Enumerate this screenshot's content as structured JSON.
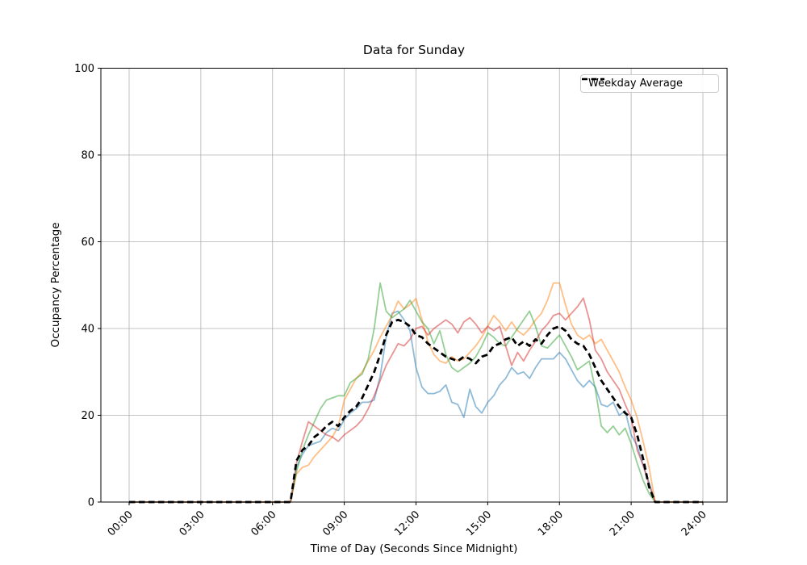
{
  "figure": {
    "title": "Data for Sunday",
    "xlabel": "Time of Day (Seconds Since Midnight)",
    "ylabel": "Occupancy Percentage",
    "legend_label": "Weekday Average"
  },
  "chart_data": {
    "type": "line",
    "title": "Data for Sunday",
    "xlabel": "Time of Day (Seconds Since Midnight)",
    "ylabel": "Occupancy Percentage",
    "x_unit": "hours_of_day",
    "x_start": 0,
    "x_step": 0.25,
    "xtick_hours": [
      0,
      3,
      6,
      9,
      12,
      15,
      18,
      21,
      24
    ],
    "xtick_labels": [
      "00:00",
      "03:00",
      "06:00",
      "09:00",
      "12:00",
      "15:00",
      "18:00",
      "21:00",
      "24:00"
    ],
    "ytick_values": [
      0,
      20,
      40,
      60,
      80,
      100
    ],
    "ylim": [
      0,
      100
    ],
    "grid": true,
    "legend": {
      "position": "upper right",
      "entries": [
        "Weekday Average"
      ]
    },
    "colors": {
      "grid": "#b0b0b0",
      "spine": "#000000",
      "background": "#ffffff"
    },
    "series": [
      {
        "name": "series-blue",
        "color": "#1f77b4",
        "opacity": 0.5,
        "width": 1.8,
        "dashed": false,
        "values": [
          0,
          0,
          0,
          0,
          0,
          0,
          0,
          0,
          0,
          0,
          0,
          0,
          0,
          0,
          0,
          0,
          0,
          0,
          0,
          0,
          0,
          0,
          0,
          0,
          0,
          0,
          0,
          0,
          8,
          11,
          13,
          13.5,
          14,
          16,
          17,
          16.5,
          19,
          20.5,
          21.5,
          23,
          23,
          23.5,
          29,
          38,
          43.5,
          44,
          42,
          39.5,
          31,
          26.5,
          25,
          25,
          25.5,
          27,
          23,
          22.5,
          19.5,
          26,
          22,
          20.5,
          23,
          24.5,
          27,
          28.5,
          31,
          29.5,
          30,
          28.5,
          31,
          33,
          33,
          33,
          34.5,
          33,
          30.5,
          28,
          26.5,
          28,
          26.5,
          22.5,
          22,
          23,
          20,
          21,
          15.5,
          13,
          8.5,
          4.5,
          0,
          0,
          0,
          0,
          0,
          0,
          0,
          0,
          0
        ]
      },
      {
        "name": "series-orange",
        "color": "#ff7f0e",
        "opacity": 0.5,
        "width": 1.8,
        "dashed": false,
        "values": [
          0,
          0,
          0,
          0,
          0,
          0,
          0,
          0,
          0,
          0,
          0,
          0,
          0,
          0,
          0,
          0,
          0,
          0,
          0,
          0,
          0,
          0,
          0,
          0,
          0,
          0,
          0,
          0,
          6.5,
          8,
          8.5,
          10.5,
          12,
          13.5,
          15,
          17.5,
          23.5,
          26,
          28.5,
          30,
          32.5,
          35,
          38,
          40.5,
          43,
          46.3,
          44.5,
          45.5,
          46.9,
          42,
          37,
          34,
          32.5,
          32,
          33.5,
          32.5,
          33,
          34.5,
          36,
          38,
          40.5,
          43,
          41.5,
          39.5,
          41.5,
          39.5,
          38.5,
          40,
          42,
          43.5,
          46.5,
          50.5,
          50.5,
          45.5,
          41,
          38.5,
          37.5,
          38.5,
          36.5,
          37.5,
          35,
          32.5,
          30,
          26.5,
          23.5,
          19.5,
          14,
          8,
          0,
          0,
          0,
          0,
          0,
          0,
          0,
          0,
          0
        ]
      },
      {
        "name": "series-green",
        "color": "#2ca02c",
        "opacity": 0.5,
        "width": 1.8,
        "dashed": false,
        "values": [
          0,
          0,
          0,
          0,
          0,
          0,
          0,
          0,
          0,
          0,
          0,
          0,
          0,
          0,
          0,
          0,
          0,
          0,
          0,
          0,
          0,
          0,
          0,
          0,
          0,
          0,
          0,
          0,
          7,
          12,
          15.5,
          18.5,
          21.5,
          23.5,
          24,
          24.5,
          24.5,
          27.5,
          28.5,
          29.5,
          33,
          40,
          50.5,
          44,
          42.5,
          43.5,
          44.5,
          46.5,
          44,
          41.5,
          40,
          36.5,
          39.5,
          34,
          31,
          30,
          31,
          32,
          33.5,
          36,
          39,
          38,
          36.5,
          36,
          38,
          40,
          42,
          44,
          40.5,
          36,
          35.5,
          37,
          38.5,
          36,
          33.5,
          30.5,
          31.5,
          32.5,
          26,
          17.5,
          16,
          17.5,
          15.5,
          17,
          13.5,
          9,
          5,
          2,
          0,
          0,
          0,
          0,
          0,
          0,
          0,
          0,
          0
        ]
      },
      {
        "name": "series-red",
        "color": "#d62728",
        "opacity": 0.5,
        "width": 1.8,
        "dashed": false,
        "values": [
          0,
          0,
          0,
          0,
          0,
          0,
          0,
          0,
          0,
          0,
          0,
          0,
          0,
          0,
          0,
          0,
          0,
          0,
          0,
          0,
          0,
          0,
          0,
          0,
          0,
          0,
          0,
          0,
          9,
          14,
          18.5,
          17.5,
          16.5,
          15.5,
          15,
          14,
          15.5,
          16.5,
          17.5,
          19,
          21.5,
          24.5,
          28,
          31.5,
          34,
          36.5,
          36,
          37.5,
          40,
          40.5,
          38.5,
          40,
          41,
          42,
          41,
          39,
          41.5,
          42.5,
          41,
          39,
          40.5,
          39.5,
          40.5,
          36,
          31.5,
          34.5,
          32.5,
          35,
          37,
          39.5,
          41,
          43,
          43.5,
          42,
          43.5,
          45,
          47,
          42,
          35,
          33,
          30,
          28,
          26,
          22.5,
          19.5,
          12,
          8.5,
          4,
          0,
          0,
          0,
          0,
          0,
          0,
          0,
          0,
          0
        ]
      },
      {
        "name": "weekday-average",
        "color": "#000000",
        "opacity": 1,
        "width": 2.8,
        "dashed": true,
        "values": [
          0,
          0,
          0,
          0,
          0,
          0,
          0,
          0,
          0,
          0,
          0,
          0,
          0,
          0,
          0,
          0,
          0,
          0,
          0,
          0,
          0,
          0,
          0,
          0,
          0,
          0,
          0,
          0,
          9.5,
          12,
          13,
          15,
          16,
          17.5,
          18.5,
          17.5,
          19.5,
          21,
          22,
          24,
          27,
          30,
          34,
          38.5,
          41.5,
          42,
          41.5,
          40.5,
          38.5,
          38,
          36.5,
          35.5,
          34.5,
          33.5,
          33,
          32.5,
          33.5,
          33,
          32,
          33.5,
          34,
          36,
          36.5,
          37.5,
          38,
          36,
          37,
          36,
          37.5,
          36.5,
          38.5,
          40,
          40.5,
          39.5,
          37.5,
          36.5,
          36,
          34,
          31,
          28,
          26,
          24,
          22,
          20.5,
          19.5,
          15.5,
          10,
          3.5,
          0,
          0,
          0,
          0,
          0,
          0,
          0,
          0,
          0
        ]
      }
    ]
  }
}
